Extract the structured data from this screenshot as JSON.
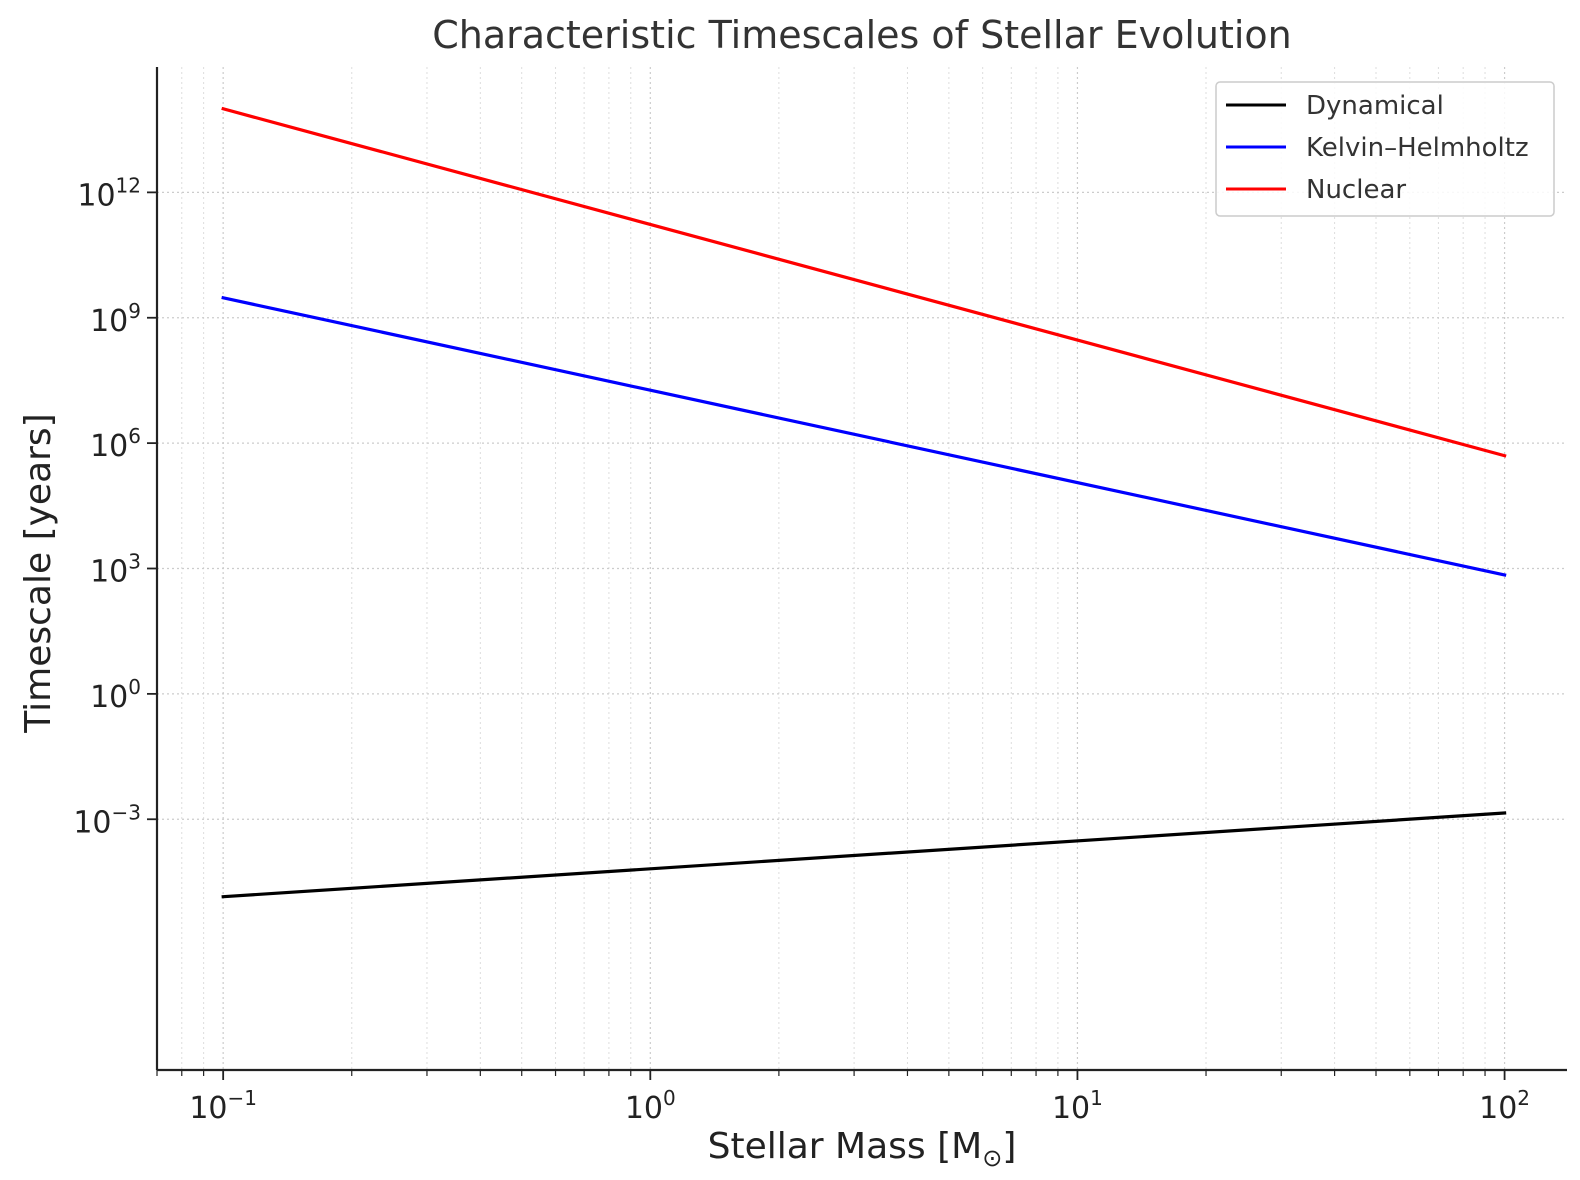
{
  "chart_data": {
    "type": "line",
    "title": "Characteristic Timescales of Stellar Evolution",
    "xlabel": "Stellar Mass [M",
    "xlabel_sub": "⊙",
    "xlabel_close": "]",
    "ylabel": "Timescale [years]",
    "xscale": "log",
    "yscale": "log",
    "xlim": [
      0.07,
      140
    ],
    "ylim": [
      1e-09,
      1000000000000000.0
    ],
    "xticks": [
      {
        "base": "10",
        "exp": "−1",
        "value": 0.1
      },
      {
        "base": "10",
        "exp": "0",
        "value": 1
      },
      {
        "base": "10",
        "exp": "1",
        "value": 10
      },
      {
        "base": "10",
        "exp": "2",
        "value": 100
      }
    ],
    "yticks": [
      {
        "base": "10",
        "exp": "12",
        "value": 1000000000000.0
      },
      {
        "base": "10",
        "exp": "9",
        "value": 1000000000.0
      },
      {
        "base": "10",
        "exp": "6",
        "value": 1000000.0
      },
      {
        "base": "10",
        "exp": "3",
        "value": 1000.0
      },
      {
        "base": "10",
        "exp": "0",
        "value": 1
      },
      {
        "base": "10",
        "exp": "−3",
        "value": 0.001
      }
    ],
    "grid": true,
    "legend_position": "top-right",
    "series": [
      {
        "name": "Dynamical",
        "color": "#000000",
        "x": [
          0.1,
          100
        ],
        "y": [
          1.4e-05,
          0.00141
        ]
      },
      {
        "name": "Kelvin–Helmholtz",
        "color": "#0000ff",
        "x": [
          0.1,
          100
        ],
        "y": [
          3000000000.0,
          700
        ]
      },
      {
        "name": "Nuclear",
        "color": "#ff0000",
        "x": [
          0.1,
          100
        ],
        "y": [
          100000000000000.0,
          500000.0
        ]
      }
    ]
  }
}
